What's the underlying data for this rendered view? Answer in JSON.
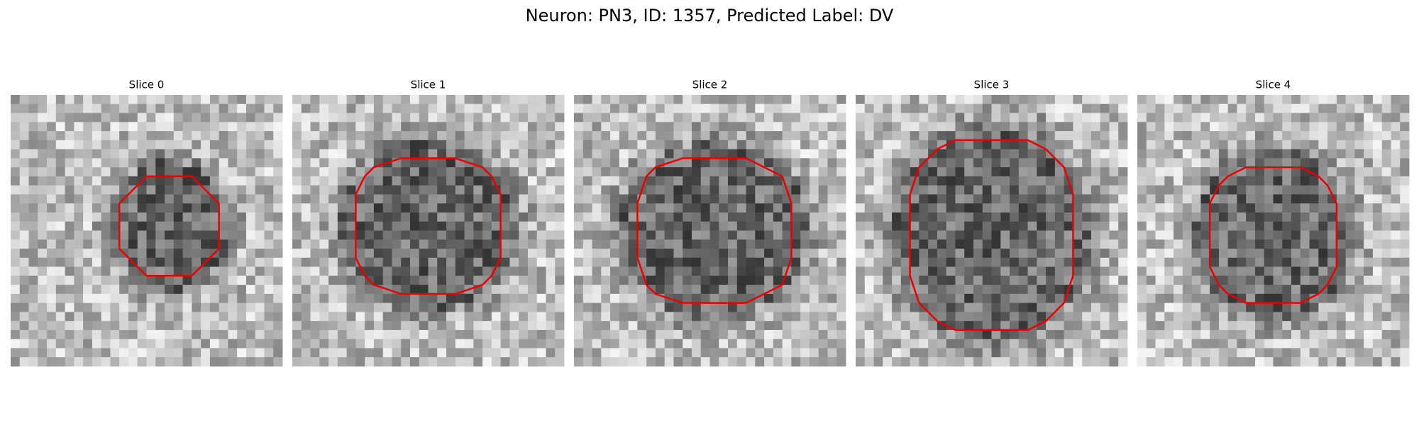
{
  "title": "Neuron: PN3, ID: 1357, Predicted Label: DV",
  "panels": [
    {
      "title": "Slice 0"
    },
    {
      "title": "Slice 1"
    },
    {
      "title": "Slice 2"
    },
    {
      "title": "Slice 3"
    },
    {
      "title": "Slice 4"
    }
  ]
}
